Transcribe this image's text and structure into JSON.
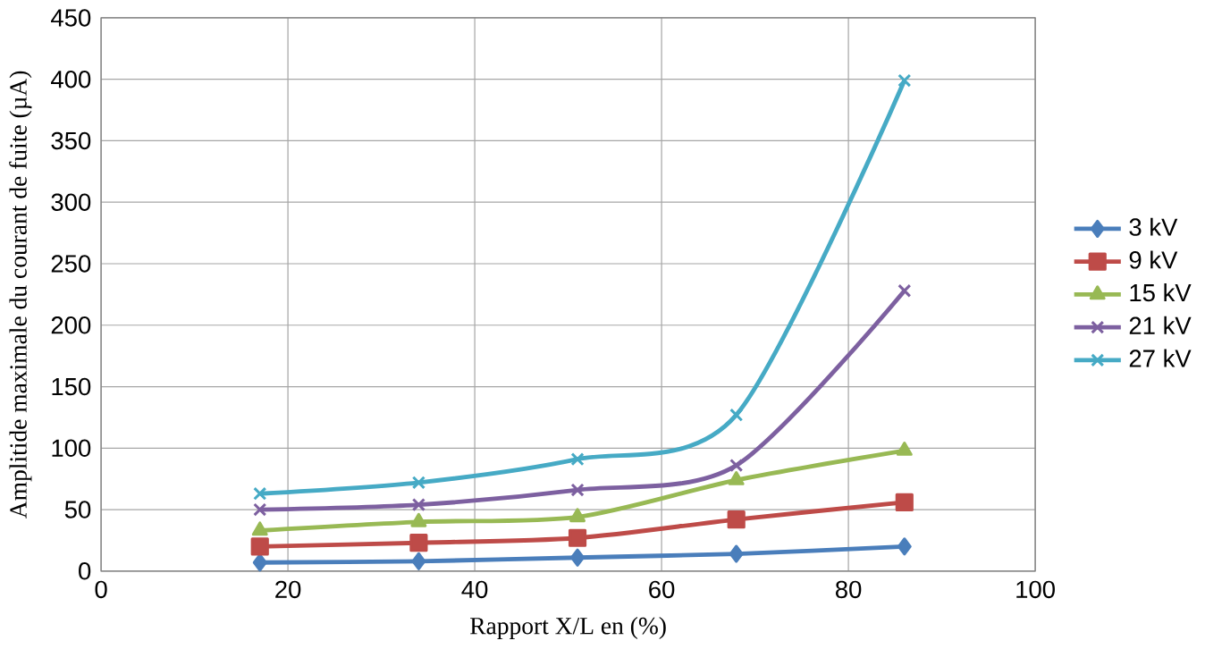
{
  "chart_data": {
    "type": "line",
    "xlabel": "Rapport X/L en (%)",
    "ylabel": "Amplitide maximale du courant de fuite (µA)",
    "xlim": [
      0,
      100
    ],
    "xticks": [
      0,
      20,
      40,
      60,
      80,
      100
    ],
    "ylim": [
      0,
      450
    ],
    "yticks": [
      0,
      50,
      100,
      150,
      200,
      250,
      300,
      350,
      400,
      450
    ],
    "grid": true,
    "legend": "right",
    "x": [
      17,
      34,
      51,
      68,
      86
    ],
    "series": [
      {
        "name": "3 kV",
        "color": "#4a7ebb",
        "marker": "diamond",
        "values": [
          7,
          8,
          11,
          14,
          20
        ]
      },
      {
        "name": "9 kV",
        "color": "#be4b48",
        "marker": "square",
        "values": [
          20,
          23,
          27,
          42,
          56
        ]
      },
      {
        "name": "15 kV",
        "color": "#98b954",
        "marker": "triangle",
        "values": [
          33,
          40,
          44,
          74,
          98
        ]
      },
      {
        "name": "21 kV",
        "color": "#7d60a0",
        "marker": "cross",
        "values": [
          50,
          54,
          66,
          86,
          228
        ]
      },
      {
        "name": "27 kV",
        "color": "#46aac5",
        "marker": "cross",
        "values": [
          63,
          72,
          91,
          127,
          399
        ]
      }
    ]
  }
}
